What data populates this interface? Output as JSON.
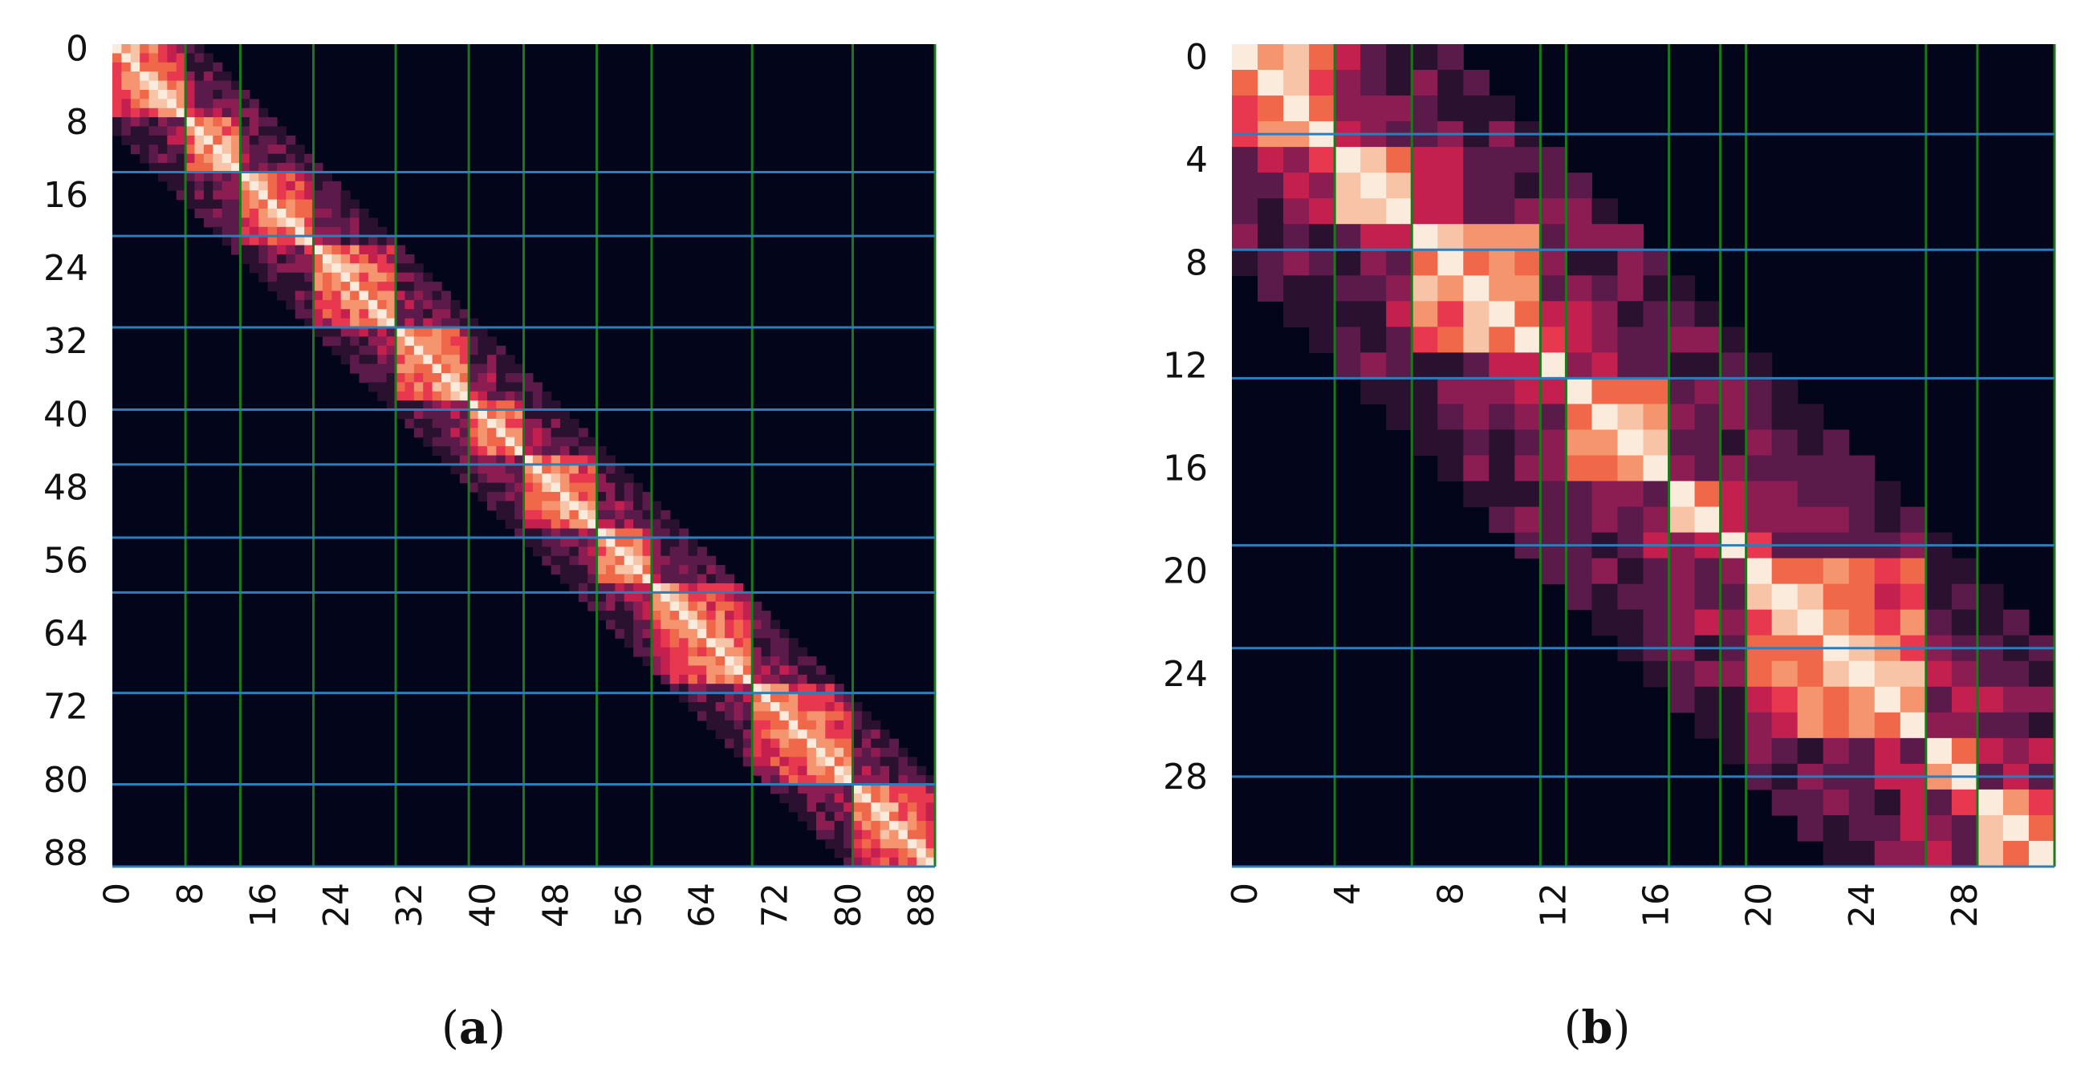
{
  "chart_data": [
    {
      "type": "heatmap",
      "caption_letter": "a",
      "size": 90,
      "xticks": [
        "0",
        "8",
        "16",
        "24",
        "32",
        "40",
        "48",
        "56",
        "64",
        "72",
        "80",
        "88"
      ],
      "yticks": [
        "0",
        "8",
        "16",
        "24",
        "32",
        "40",
        "48",
        "56",
        "64",
        "72",
        "80",
        "88"
      ],
      "tick_step": 8,
      "band_halfwidth": 9,
      "blocks": [
        [
          0,
          8
        ],
        [
          8,
          14
        ],
        [
          14,
          22
        ],
        [
          22,
          31
        ],
        [
          31,
          39
        ],
        [
          39,
          45
        ],
        [
          45,
          53
        ],
        [
          53,
          59
        ],
        [
          59,
          70
        ],
        [
          70,
          81
        ],
        [
          81,
          90
        ]
      ],
      "vertical_lines": [
        8,
        14,
        22,
        31,
        39,
        45,
        53,
        59,
        70,
        81
      ],
      "horizontal_lines": [
        14,
        21,
        31,
        40,
        46,
        54,
        60,
        71,
        81
      ],
      "vertical_line_color": "#1a7a1a",
      "horizontal_line_color": "#2f7db8",
      "background_color": "#03051a",
      "colormap": [
        "#03051a",
        "#2b1130",
        "#5a1a4a",
        "#8c1d53",
        "#c4204f",
        "#e8384f",
        "#f0684a",
        "#f4956f",
        "#f7c4a8",
        "#faebdd"
      ]
    },
    {
      "type": "heatmap",
      "caption_letter": "b",
      "size": 32,
      "xticks": [
        "0",
        "4",
        "8",
        "12",
        "16",
        "20",
        "24",
        "28"
      ],
      "yticks": [
        "0",
        "4",
        "8",
        "12",
        "16",
        "20",
        "24",
        "28"
      ],
      "tick_step": 4,
      "band_halfwidth": 8,
      "blocks": [
        [
          0,
          4
        ],
        [
          4,
          7
        ],
        [
          7,
          12
        ],
        [
          12,
          13
        ],
        [
          13,
          17
        ],
        [
          17,
          19
        ],
        [
          19,
          20
        ],
        [
          20,
          27
        ],
        [
          27,
          29
        ],
        [
          29,
          32
        ]
      ],
      "vertical_lines": [
        4,
        7,
        12,
        13,
        17,
        19,
        20,
        27,
        29
      ],
      "horizontal_lines": [
        3.5,
        8,
        13,
        19.5,
        23.5,
        28.5
      ],
      "vertical_line_color": "#1a7a1a",
      "horizontal_line_color": "#2f7db8",
      "background_color": "#03051a",
      "colormap": [
        "#03051a",
        "#2b1130",
        "#5a1a4a",
        "#8c1d53",
        "#c4204f",
        "#e8384f",
        "#f0684a",
        "#f4956f",
        "#f7c4a8",
        "#faebdd"
      ]
    }
  ]
}
